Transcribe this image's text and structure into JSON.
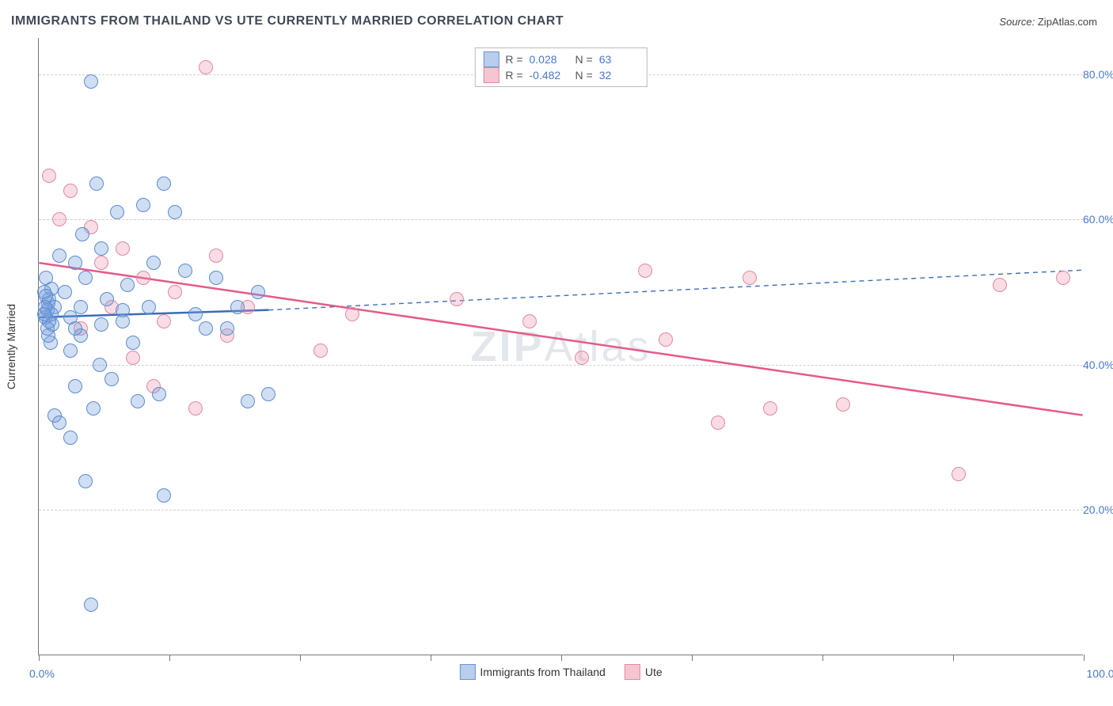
{
  "title": "IMMIGRANTS FROM THAILAND VS UTE CURRENTLY MARRIED CORRELATION CHART",
  "source": {
    "label": "Source:",
    "value": "ZipAtlas.com"
  },
  "watermark": {
    "prefix": "ZIP",
    "suffix": "Atlas"
  },
  "chart": {
    "type": "scatter",
    "yaxis_title": "Currently Married",
    "x_min_label": "0.0%",
    "x_max_label": "100.0%",
    "xlim": [
      0,
      100
    ],
    "ylim": [
      0,
      85
    ],
    "xtick_positions": [
      0,
      12.5,
      25,
      37.5,
      50,
      62.5,
      75,
      87.5,
      100
    ],
    "gridlines": [
      {
        "y": 20,
        "label": "20.0%"
      },
      {
        "y": 40,
        "label": "40.0%"
      },
      {
        "y": 60,
        "label": "60.0%"
      },
      {
        "y": 80,
        "label": "80.0%"
      }
    ],
    "background_color": "#ffffff",
    "grid_color": "#cfcfcf",
    "axis_color": "#777777",
    "tick_label_color": "#4a78c8",
    "marker_radius": 9,
    "marker_border_width": 1.2,
    "series": [
      {
        "name": "Immigrants from Thailand",
        "fill": "rgba(120,160,220,0.35)",
        "stroke": "#5b8bd0",
        "swatch_fill": "#b9cdec",
        "swatch_border": "#6a94d4",
        "R": "0.028",
        "N": "63",
        "trend": {
          "solid": {
            "x1": 0,
            "y1": 46.5,
            "x2": 22,
            "y2": 47.5,
            "color": "#3b6db8",
            "width": 2.5
          },
          "dashed": {
            "x1": 22,
            "y1": 47.5,
            "x2": 100,
            "y2": 53,
            "color": "#3b6db8",
            "width": 1.4,
            "dash": "6,5"
          }
        },
        "points": [
          [
            0.5,
            47
          ],
          [
            0.8,
            45
          ],
          [
            0.6,
            48
          ],
          [
            1.0,
            46
          ],
          [
            0.7,
            49.5
          ],
          [
            0.9,
            44
          ],
          [
            1.2,
            47
          ],
          [
            0.5,
            50
          ],
          [
            1.1,
            43
          ],
          [
            1.5,
            48
          ],
          [
            0.6,
            46.5
          ],
          [
            1.0,
            49
          ],
          [
            0.8,
            47.5
          ],
          [
            1.3,
            45.5
          ],
          [
            0.7,
            52
          ],
          [
            1.2,
            50.5
          ],
          [
            0.9,
            48.5
          ],
          [
            2,
            55
          ],
          [
            2.5,
            50
          ],
          [
            3,
            42
          ],
          [
            3.5,
            45
          ],
          [
            4,
            44
          ],
          [
            4.5,
            52
          ],
          [
            5,
            79
          ],
          [
            5.5,
            65
          ],
          [
            6,
            56
          ],
          [
            6.5,
            49
          ],
          [
            7,
            38
          ],
          [
            7.5,
            61
          ],
          [
            8,
            46
          ],
          [
            8.5,
            51
          ],
          [
            9,
            43
          ],
          [
            9.5,
            35
          ],
          [
            10,
            62
          ],
          [
            10.5,
            48
          ],
          [
            11,
            54
          ],
          [
            11.5,
            36
          ],
          [
            12,
            65
          ],
          [
            13,
            61
          ],
          [
            14,
            53
          ],
          [
            15,
            47
          ],
          [
            16,
            45
          ],
          [
            17,
            52
          ],
          [
            18,
            45
          ],
          [
            19,
            48
          ],
          [
            20,
            35
          ],
          [
            21,
            50
          ],
          [
            22,
            36
          ],
          [
            3,
            46.5
          ],
          [
            4,
            48
          ],
          [
            6,
            45.5
          ],
          [
            8,
            47.5
          ],
          [
            3.5,
            54
          ],
          [
            4.2,
            58
          ],
          [
            5.8,
            40
          ],
          [
            5.2,
            34
          ],
          [
            3,
            30
          ],
          [
            2,
            32
          ],
          [
            3.5,
            37
          ],
          [
            4.5,
            24
          ],
          [
            12,
            22
          ],
          [
            5,
            7
          ],
          [
            1.5,
            33
          ]
        ]
      },
      {
        "name": "Ute",
        "fill": "rgba(235,140,165,0.30)",
        "stroke": "#e08aa2",
        "swatch_fill": "#f5c5d2",
        "swatch_border": "#e08aa2",
        "R": "-0.482",
        "N": "32",
        "trend": {
          "solid": {
            "x1": 0,
            "y1": 54,
            "x2": 100,
            "y2": 33,
            "color": "#e65a86",
            "width": 2.5
          }
        },
        "points": [
          [
            1,
            66
          ],
          [
            2,
            60
          ],
          [
            3,
            64
          ],
          [
            4,
            45
          ],
          [
            5,
            59
          ],
          [
            6,
            54
          ],
          [
            7,
            48
          ],
          [
            8,
            56
          ],
          [
            9,
            41
          ],
          [
            10,
            52
          ],
          [
            11,
            37
          ],
          [
            12,
            46
          ],
          [
            13,
            50
          ],
          [
            15,
            34
          ],
          [
            16,
            81
          ],
          [
            17,
            55
          ],
          [
            18,
            44
          ],
          [
            20,
            48
          ],
          [
            27,
            42
          ],
          [
            30,
            47
          ],
          [
            40,
            49
          ],
          [
            47,
            46
          ],
          [
            52,
            41
          ],
          [
            58,
            53
          ],
          [
            60,
            43.5
          ],
          [
            65,
            32
          ],
          [
            70,
            34
          ],
          [
            77,
            34.5
          ],
          [
            88,
            25
          ],
          [
            92,
            51
          ],
          [
            98,
            52
          ],
          [
            68,
            52
          ]
        ]
      }
    ]
  },
  "legend_top": {
    "r_label": "R =",
    "n_label": "N ="
  }
}
